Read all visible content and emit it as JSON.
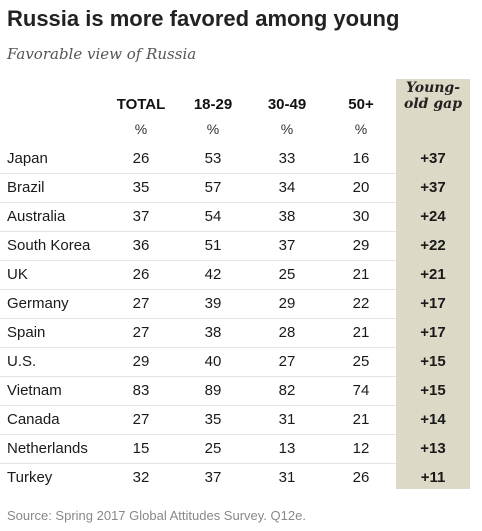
{
  "title": "Russia is more favored among young",
  "subtitle": "Favorable view of Russia",
  "source": "Source: Spring 2017 Global Attitudes Survey. Q12e.",
  "chart_data": {
    "type": "table",
    "columns": [
      "TOTAL",
      "18-29",
      "30-49",
      "50+"
    ],
    "gap_header": [
      "Young-",
      "old gap"
    ],
    "unit": "%",
    "gap_color": "#ddd9c7",
    "rows": [
      {
        "country": "Japan",
        "total": "26",
        "a1829": "53",
        "a3049": "33",
        "a50": "16",
        "gap": "+37"
      },
      {
        "country": "Brazil",
        "total": "35",
        "a1829": "57",
        "a3049": "34",
        "a50": "20",
        "gap": "+37"
      },
      {
        "country": "Australia",
        "total": "37",
        "a1829": "54",
        "a3049": "38",
        "a50": "30",
        "gap": "+24"
      },
      {
        "country": "South Korea",
        "total": "36",
        "a1829": "51",
        "a3049": "37",
        "a50": "29",
        "gap": "+22"
      },
      {
        "country": "UK",
        "total": "26",
        "a1829": "42",
        "a3049": "25",
        "a50": "21",
        "gap": "+21"
      },
      {
        "country": "Germany",
        "total": "27",
        "a1829": "39",
        "a3049": "29",
        "a50": "22",
        "gap": "+17"
      },
      {
        "country": "Spain",
        "total": "27",
        "a1829": "38",
        "a3049": "28",
        "a50": "21",
        "gap": "+17"
      },
      {
        "country": "U.S.",
        "total": "29",
        "a1829": "40",
        "a3049": "27",
        "a50": "25",
        "gap": "+15"
      },
      {
        "country": "Vietnam",
        "total": "83",
        "a1829": "89",
        "a3049": "82",
        "a50": "74",
        "gap": "+15"
      },
      {
        "country": "Canada",
        "total": "27",
        "a1829": "35",
        "a3049": "31",
        "a50": "21",
        "gap": "+14"
      },
      {
        "country": "Netherlands",
        "total": "15",
        "a1829": "25",
        "a3049": "13",
        "a50": "12",
        "gap": "+13"
      },
      {
        "country": "Turkey",
        "total": "32",
        "a1829": "37",
        "a3049": "31",
        "a50": "26",
        "gap": "+11"
      }
    ]
  }
}
